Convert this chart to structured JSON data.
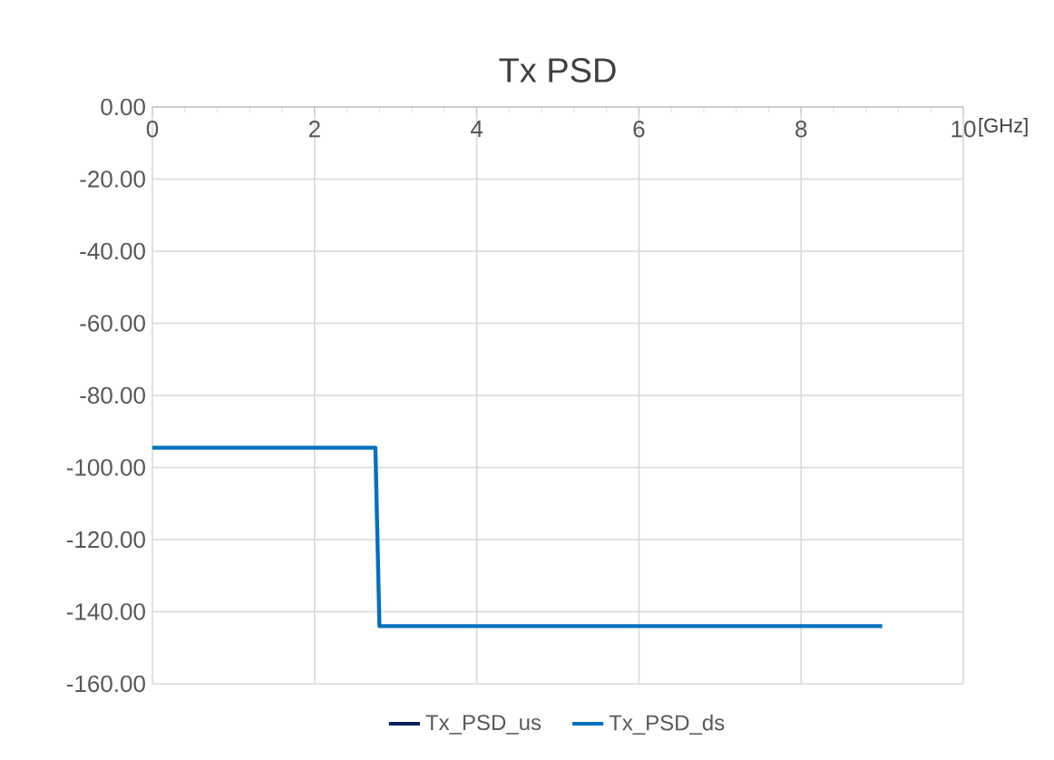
{
  "chart_data": {
    "type": "line",
    "title": "Tx PSD",
    "xlabel": "[GHz]",
    "xlim": [
      0,
      10
    ],
    "xticks": [
      0,
      2,
      4,
      6,
      8,
      10
    ],
    "ylim": [
      -160,
      0
    ],
    "yticks": [
      {
        "value": 0,
        "label": "0.00"
      },
      {
        "value": -20,
        "label": "-20.00"
      },
      {
        "value": -40,
        "label": "-40.00"
      },
      {
        "value": -60,
        "label": "-60.00"
      },
      {
        "value": -80,
        "label": "-80.00"
      },
      {
        "value": -100,
        "label": "-100.00"
      },
      {
        "value": -120,
        "label": "-120.00"
      },
      {
        "value": -140,
        "label": "-140.00"
      },
      {
        "value": -160,
        "label": "-160.00"
      }
    ],
    "grid": true,
    "legend": "bottom",
    "marker": "none",
    "line_style": "solid",
    "series": [
      {
        "name": "Tx_PSD_us",
        "color": "#002060"
      },
      {
        "name": "Tx_PSD_ds",
        "color": "#0070c0",
        "x": [
          0,
          2.75,
          2.8,
          9.0
        ],
        "values": [
          -94.5,
          -94.5,
          -144,
          -144
        ]
      }
    ]
  }
}
